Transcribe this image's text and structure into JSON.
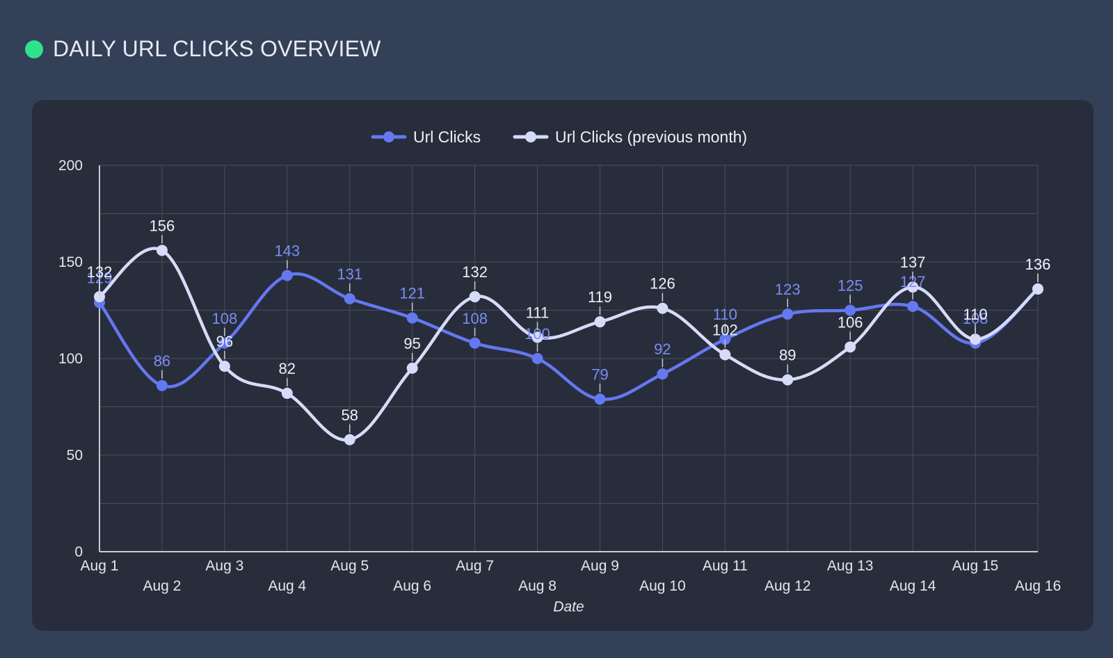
{
  "header": {
    "title": "DAILY URL CLICKS OVERVIEW",
    "status_color": "#2ee28c"
  },
  "chart_data": {
    "type": "line",
    "title": "",
    "xlabel": "Date",
    "ylabel": "",
    "ylim": [
      0,
      200
    ],
    "yticks": [
      0,
      50,
      100,
      150,
      200
    ],
    "grid": true,
    "smooth": true,
    "legend_position": "top",
    "categories": [
      "Aug 1",
      "Aug 2",
      "Aug 3",
      "Aug 4",
      "Aug 5",
      "Aug 6",
      "Aug 7",
      "Aug 8",
      "Aug 9",
      "Aug 10",
      "Aug 11",
      "Aug 12",
      "Aug 13",
      "Aug 14",
      "Aug 15",
      "Aug 16"
    ],
    "series": [
      {
        "name": "Url Clicks",
        "color": "#6478f0",
        "label_color": "#7b8cf5",
        "values": [
          129,
          86,
          108,
          143,
          131,
          121,
          108,
          100,
          79,
          92,
          110,
          123,
          125,
          127,
          108,
          136
        ]
      },
      {
        "name": "Url Clicks (previous month)",
        "color": "#d6dcf8",
        "label_color": "#eef0f8",
        "values": [
          132,
          156,
          96,
          82,
          58,
          95,
          132,
          111,
          119,
          126,
          102,
          89,
          106,
          137,
          110,
          136
        ]
      }
    ]
  }
}
